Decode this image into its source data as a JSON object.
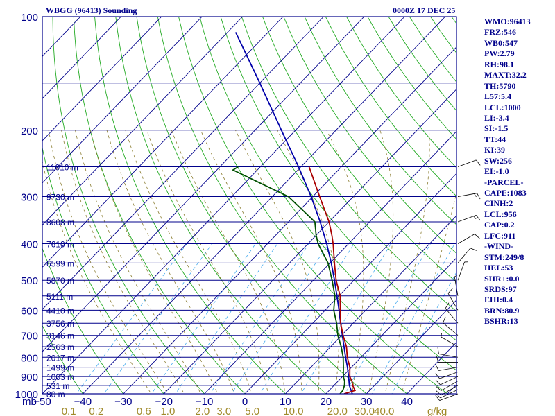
{
  "header": {
    "station": "WBGG (96413) Sounding",
    "time": "0000Z 17 DEC 25"
  },
  "indices": [
    "WMO:96413",
    "FRZ:546",
    "WB0:547",
    "PW:2.79",
    "RH:98.1",
    "MAXT:32.2",
    "TH:5790",
    "L57:5.4",
    "LCL:1000",
    "LI:-3.4",
    "SI:-1.5",
    "TT:44",
    "KI:39",
    "SW:256",
    "EI:-1.0",
    "-PARCEL-",
    "CAPE:1083",
    "CINH:2",
    "LCL:956",
    "CAP:0.2",
    "LFC:911",
    "-WIND-",
    "STM:249/8",
    "HEL:53",
    "SHR+:0.0",
    "SRDS:97",
    "EHI:0.4",
    "BRN:80.9",
    "BSHR:13"
  ],
  "colors": {
    "frame": "#00008b",
    "isobar": "#00008b",
    "isotherm": "#00008b",
    "dry_adiabat": "#22aa22",
    "moist_adiabat": "#8b7d30",
    "mixing_ratio": "#44aaee",
    "temperature": "#aa0000",
    "dewpoint": "#005000",
    "parcel": "#0000aa",
    "label": "#00008b",
    "mixing_label": "#a08a2a"
  },
  "chart_data": {
    "type": "skew-t",
    "title": "WBGG (96413) Sounding",
    "valid_time": "0000Z 17 DEC 25",
    "pressure_range_hpa": [
      1000,
      100
    ],
    "temperature_range_c": [
      -50,
      50
    ],
    "pressure_ticks": [
      "100",
      "200",
      "300",
      "400",
      "500",
      "600",
      "700",
      "800",
      "900",
      "1000"
    ],
    "temperature_ticks": [
      "−50",
      "−40",
      "−30",
      "−20",
      "−10",
      "0",
      "10",
      "20",
      "30",
      "40"
    ],
    "pressure_unit": "mb",
    "mixing_ratio_unit": "g/kg",
    "mixing_ratio_ticks": [
      "0.1",
      "0.2",
      "0.6",
      "1.0",
      "2.0",
      "3.0",
      "5.0",
      "10.0",
      "20.0",
      "30.0",
      "40.0"
    ],
    "height_levels": [
      {
        "label": "11010 m",
        "p": 250
      },
      {
        "label": "9730 m",
        "p": 300
      },
      {
        "label": "8608 m",
        "p": 350
      },
      {
        "label": "7610 m",
        "p": 400
      },
      {
        "label": "6599 m",
        "p": 450
      },
      {
        "label": "5870 m",
        "p": 500
      },
      {
        "label": "5111 m",
        "p": 550
      },
      {
        "label": "4410 m",
        "p": 600
      },
      {
        "label": "3756 m",
        "p": 650
      },
      {
        "label": "3146 m",
        "p": 700
      },
      {
        "label": "2563 m",
        "p": 750
      },
      {
        "label": "2017 m",
        "p": 800
      },
      {
        "label": "1499 m",
        "p": 850
      },
      {
        "label": "1003 m",
        "p": 900
      },
      {
        "label": "531 m",
        "p": 950
      },
      {
        "label": "80 m",
        "p": 1000
      }
    ],
    "temperature_profile": [
      {
        "p": 1000,
        "t": 24.5
      },
      {
        "p": 980,
        "t": 26.4
      },
      {
        "p": 950,
        "t": 24.6
      },
      {
        "p": 925,
        "t": 23.4
      },
      {
        "p": 900,
        "t": 21.8
      },
      {
        "p": 850,
        "t": 19.6
      },
      {
        "p": 800,
        "t": 16.6
      },
      {
        "p": 750,
        "t": 13.9
      },
      {
        "p": 700,
        "t": 10.4
      },
      {
        "p": 650,
        "t": 6.9
      },
      {
        "p": 600,
        "t": 3.7
      },
      {
        "p": 550,
        "t": 0.3
      },
      {
        "p": 500,
        "t": -4.4
      },
      {
        "p": 450,
        "t": -8.9
      },
      {
        "p": 400,
        "t": -13.8
      },
      {
        "p": 380,
        "t": -16.1
      },
      {
        "p": 350,
        "t": -20.0
      },
      {
        "p": 300,
        "t": -28.3
      },
      {
        "p": 250,
        "t": -38.0
      }
    ],
    "dewpoint_profile": [
      {
        "p": 1000,
        "t": 23.5
      },
      {
        "p": 980,
        "t": 23.4
      },
      {
        "p": 950,
        "t": 22.6
      },
      {
        "p": 925,
        "t": 21.6
      },
      {
        "p": 900,
        "t": 20.2
      },
      {
        "p": 850,
        "t": 18.0
      },
      {
        "p": 800,
        "t": 15.6
      },
      {
        "p": 750,
        "t": 12.6
      },
      {
        "p": 700,
        "t": 9.1
      },
      {
        "p": 650,
        "t": 5.9
      },
      {
        "p": 600,
        "t": 2.1
      },
      {
        "p": 550,
        "t": -1.0
      },
      {
        "p": 500,
        "t": -5.4
      },
      {
        "p": 450,
        "t": -10.5
      },
      {
        "p": 400,
        "t": -17.5
      },
      {
        "p": 380,
        "t": -20.0
      },
      {
        "p": 350,
        "t": -23.5
      },
      {
        "p": 300,
        "t": -36.0
      },
      {
        "p": 255,
        "t": -56.0
      },
      {
        "p": 250,
        "t": -55.5
      }
    ],
    "parcel_profile": [
      {
        "p": 1000,
        "t": 26.5
      },
      {
        "p": 950,
        "t": 23.8
      },
      {
        "p": 900,
        "t": 21.5
      },
      {
        "p": 850,
        "t": 19.0
      },
      {
        "p": 800,
        "t": 16.2
      },
      {
        "p": 750,
        "t": 13.3
      },
      {
        "p": 700,
        "t": 10.2
      },
      {
        "p": 650,
        "t": 6.9
      },
      {
        "p": 600,
        "t": 3.4
      },
      {
        "p": 550,
        "t": -0.5
      },
      {
        "p": 500,
        "t": -4.8
      },
      {
        "p": 450,
        "t": -9.7
      },
      {
        "p": 400,
        "t": -15.4
      },
      {
        "p": 350,
        "t": -22.2
      },
      {
        "p": 300,
        "t": -30.4
      },
      {
        "p": 250,
        "t": -40.6
      },
      {
        "p": 200,
        "t": -53.5
      },
      {
        "p": 150,
        "t": -70.0
      },
      {
        "p": 110,
        "t": -88.0
      }
    ],
    "wind_barbs": [
      {
        "p": 1000,
        "dir": 250,
        "spd": 10
      },
      {
        "p": 975,
        "dir": 245,
        "spd": 10
      },
      {
        "p": 950,
        "dir": 240,
        "spd": 10
      },
      {
        "p": 925,
        "dir": 240,
        "spd": 10
      },
      {
        "p": 900,
        "dir": 245,
        "spd": 10
      },
      {
        "p": 875,
        "dir": 250,
        "spd": 10
      },
      {
        "p": 850,
        "dir": 260,
        "spd": 10
      },
      {
        "p": 825,
        "dir": 270,
        "spd": 10
      },
      {
        "p": 800,
        "dir": 280,
        "spd": 10
      },
      {
        "p": 750,
        "dir": 300,
        "spd": 5
      },
      {
        "p": 700,
        "dir": 310,
        "spd": 10
      },
      {
        "p": 650,
        "dir": 320,
        "spd": 10
      },
      {
        "p": 600,
        "dir": 330,
        "spd": 10
      },
      {
        "p": 550,
        "dir": 350,
        "spd": 5
      },
      {
        "p": 500,
        "dir": 20,
        "spd": 5
      },
      {
        "p": 450,
        "dir": 40,
        "spd": 10
      },
      {
        "p": 400,
        "dir": 60,
        "spd": 10
      },
      {
        "p": 350,
        "dir": 70,
        "spd": 15
      },
      {
        "p": 300,
        "dir": 80,
        "spd": 15
      },
      {
        "p": 250,
        "dir": 70,
        "spd": 10
      }
    ]
  }
}
